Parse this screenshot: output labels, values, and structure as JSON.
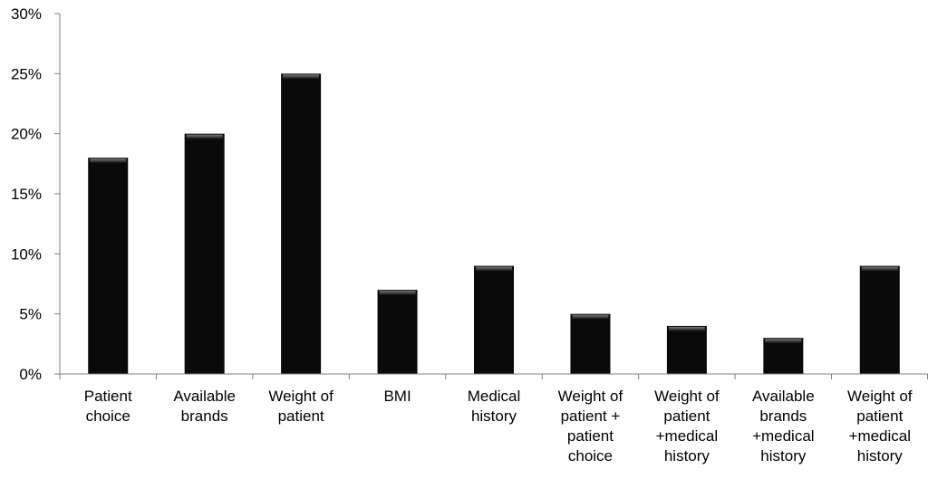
{
  "chart_data": {
    "type": "bar",
    "title": "",
    "xlabel": "",
    "ylabel": "",
    "ylim": [
      0,
      0.3
    ],
    "yticks": [
      "0%",
      "5%",
      "10%",
      "15%",
      "20%",
      "25%",
      "30%"
    ],
    "grid": false,
    "legend": "none",
    "categories": [
      [
        "Patient",
        "choice"
      ],
      [
        "Available",
        "brands"
      ],
      [
        "Weight of",
        "patient"
      ],
      [
        "BMI"
      ],
      [
        "Medical",
        "history"
      ],
      [
        "Weight of",
        "patient +",
        "patient",
        "choice"
      ],
      [
        "Weight of",
        "patient",
        "+medical",
        "history"
      ],
      [
        "Available",
        "brands",
        "+medical",
        "history"
      ],
      [
        "Weight of",
        "patient",
        "+medical",
        "history"
      ]
    ],
    "values": [
      0.18,
      0.2,
      0.25,
      0.07,
      0.09,
      0.05,
      0.04,
      0.03,
      0.09
    ],
    "colors": {
      "bar": "#0a0a0a",
      "bar_highlight": "#6a6a6a",
      "axis": "#808080",
      "text": "#000000"
    }
  }
}
